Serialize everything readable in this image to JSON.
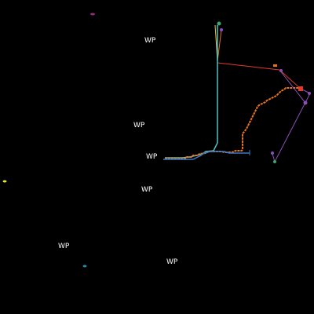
{
  "map": {
    "background": "#000000",
    "waypoint_color": "#ffffff",
    "waypoints": [
      {
        "id": "wp-1",
        "label": "WP"
      },
      {
        "id": "wp-2",
        "label": "WP"
      },
      {
        "id": "wp-3",
        "label": "WP"
      },
      {
        "id": "wp-4",
        "label": "WP"
      },
      {
        "id": "wp-5",
        "label": "WP"
      },
      {
        "id": "wp-6",
        "label": "WP"
      }
    ],
    "tracks": [
      {
        "id": "cyan-track",
        "color": "#4fc3c3"
      },
      {
        "id": "orange-track",
        "color": "#e8731a"
      },
      {
        "id": "blue-track",
        "color": "#3a78c8"
      },
      {
        "id": "red-link",
        "color": "#e03a2a"
      },
      {
        "id": "yellow-link",
        "color": "#e8c23a"
      },
      {
        "id": "purple-link",
        "color": "#8a4fb8"
      }
    ],
    "contacts": [
      {
        "id": "contact-magenta",
        "color": "#9a2a7a",
        "icon": "contact-dot"
      },
      {
        "id": "contact-yellow",
        "color": "#e8e83a",
        "icon": "contact-dot"
      },
      {
        "id": "contact-teal",
        "color": "#2a8aa8",
        "icon": "contact-dot"
      },
      {
        "id": "contact-red",
        "color": "#e03a2a",
        "icon": "contact-marker"
      },
      {
        "id": "contact-purple",
        "color": "#8a4fb8",
        "icon": "contact-marker"
      },
      {
        "id": "contact-green",
        "color": "#3aa86a",
        "icon": "contact-marker"
      }
    ]
  }
}
